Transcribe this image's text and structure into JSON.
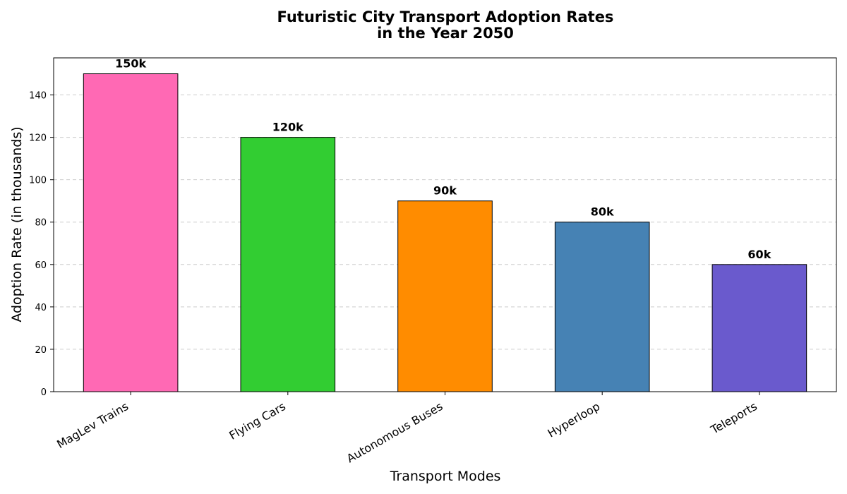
{
  "chart_data": {
    "type": "bar",
    "title_line1": "Futuristic City Transport Adoption Rates",
    "title_line2": "in the Year 2050",
    "xlabel": "Transport Modes",
    "ylabel": "Adoption Rate (in thousands)",
    "categories": [
      "MagLev Trains",
      "Flying Cars",
      "Autonomous Buses",
      "Hyperloop",
      "Teleports"
    ],
    "values": [
      150,
      120,
      90,
      80,
      60
    ],
    "data_labels": [
      "150k",
      "120k",
      "90k",
      "80k",
      "60k"
    ],
    "colors": [
      "#ff69b4",
      "#32cd32",
      "#ff8c00",
      "#4682b4",
      "#6a5acd"
    ],
    "ylim": [
      0,
      157.5
    ],
    "yticks": [
      0,
      20,
      40,
      60,
      80,
      100,
      120,
      140
    ],
    "grid": "y-dashed",
    "legend": "none"
  }
}
